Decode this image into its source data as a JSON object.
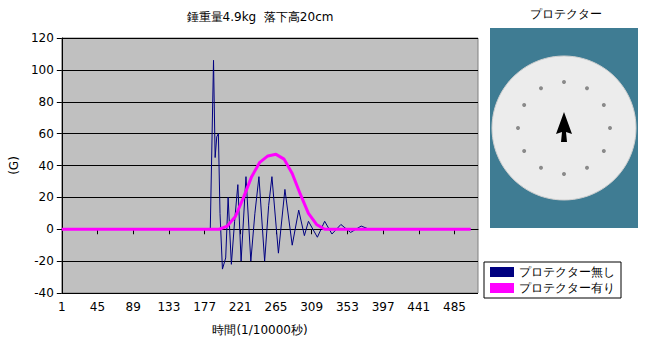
{
  "chart_data": {
    "type": "line",
    "title": "錘重量4.9kg  落下高20cm",
    "x_label": "時間(1/10000秒)",
    "y_label": "(G)",
    "annotations": [
      "プロテクター"
    ],
    "xlim": [
      1,
      514
    ],
    "xticks": [
      1,
      45,
      89,
      133,
      177,
      221,
      265,
      309,
      353,
      397,
      441,
      485
    ],
    "ylim": [
      -40,
      120
    ],
    "yticks": [
      -40,
      -20,
      0,
      20,
      40,
      60,
      80,
      100,
      120
    ],
    "grid": true,
    "legend": "lower right",
    "marker": "none",
    "line_style": "solid",
    "series": [
      {
        "name": "プロテクター無し",
        "color": "#000080",
        "x": [
          1,
          184,
          188,
          190,
          192,
          194,
          196,
          199,
          203,
          206,
          210,
          214,
          218,
          222,
          228,
          234,
          239,
          244,
          251,
          256,
          260,
          268,
          276,
          285,
          293,
          300,
          305,
          316,
          325,
          334,
          345,
          357,
          370,
          380,
          505
        ],
        "values": [
          0,
          0,
          106,
          45,
          58,
          60,
          10,
          -25,
          -18,
          20,
          -22,
          5,
          28,
          -20,
          33,
          -20,
          10,
          33,
          -20,
          15,
          33,
          -15,
          25,
          -10,
          12,
          -4,
          5,
          -5,
          5,
          -3,
          3,
          -2,
          2,
          0,
          0
        ]
      },
      {
        "name": "プロテクター有り",
        "color": "#ff00ff",
        "x": [
          1,
          195,
          205,
          215,
          225,
          235,
          245,
          255,
          265,
          275,
          285,
          295,
          305,
          315,
          325,
          505
        ],
        "values": [
          0,
          0,
          2,
          8,
          20,
          33,
          42,
          46,
          47,
          44,
          35,
          22,
          10,
          3,
          0,
          0
        ]
      }
    ]
  }
}
